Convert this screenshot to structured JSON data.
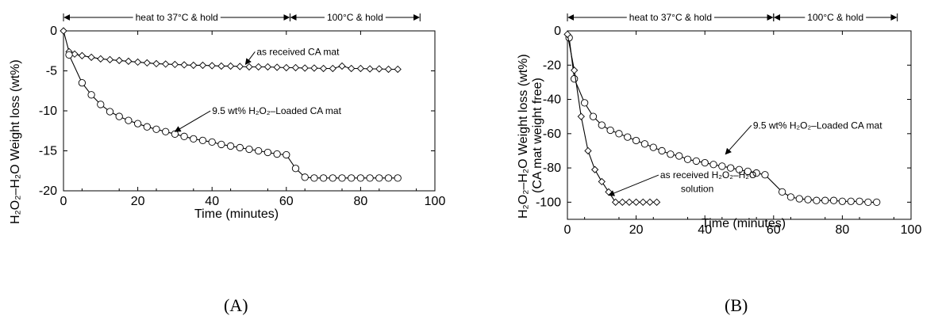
{
  "chart_data": [
    {
      "type": "scatter",
      "panel_label": "(A)",
      "xlabel": "Time (minutes)",
      "ylabel": "H₂O₂–H₂O Weight loss (wt%)",
      "xlim": [
        0,
        100
      ],
      "ylim": [
        -20,
        0
      ],
      "xticks": [
        0,
        20,
        40,
        60,
        80,
        100
      ],
      "yticks": [
        0,
        -5,
        -10,
        -15,
        -20
      ],
      "xtick_labels": [
        "0",
        "20",
        "40",
        "60",
        "80",
        "100"
      ],
      "ytick_labels": [
        "0",
        "-5",
        "-10",
        "-15",
        "-20"
      ],
      "phases": [
        {
          "label": "heat to 37°C & hold",
          "x_start": 0,
          "x_end": 61
        },
        {
          "label": "100°C & hold",
          "x_start": 61,
          "x_end": 96
        }
      ],
      "series": [
        {
          "name": "as received CA mat",
          "marker": "diamond",
          "x": [
            0,
            1.5,
            3,
            5,
            7.5,
            10,
            12.5,
            15,
            17.5,
            20,
            22.5,
            25,
            27.5,
            30,
            32.5,
            35,
            37.5,
            40,
            42.5,
            45,
            47.5,
            50,
            52.5,
            55,
            57.5,
            60,
            62.5,
            65,
            67.5,
            70,
            72.5,
            75,
            77.5,
            80,
            82.5,
            85,
            87.5,
            90
          ],
          "y": [
            0,
            -2.6,
            -2.9,
            -3.1,
            -3.3,
            -3.5,
            -3.6,
            -3.7,
            -3.8,
            -3.9,
            -4.0,
            -4.1,
            -4.15,
            -4.2,
            -4.25,
            -4.3,
            -4.3,
            -4.35,
            -4.4,
            -4.4,
            -4.45,
            -4.5,
            -4.5,
            -4.5,
            -4.55,
            -4.6,
            -4.6,
            -4.65,
            -4.65,
            -4.7,
            -4.7,
            -4.4,
            -4.7,
            -4.7,
            -4.75,
            -4.75,
            -4.8,
            -4.8
          ]
        },
        {
          "name": "9.5 wt% H₂O₂–Loaded CA mat",
          "marker": "circle",
          "x": [
            1.5,
            5,
            7.5,
            10,
            12.5,
            15,
            17.5,
            20,
            22.5,
            25,
            27.5,
            30,
            32.5,
            35,
            37.5,
            40,
            42.5,
            45,
            47.5,
            50,
            52.5,
            55,
            57.5,
            60,
            62.5,
            65,
            67.5,
            70,
            72.5,
            75,
            77.5,
            80,
            82.5,
            85,
            87.5,
            90
          ],
          "y": [
            -3.0,
            -6.5,
            -8.0,
            -9.2,
            -10.1,
            -10.7,
            -11.2,
            -11.6,
            -12.0,
            -12.3,
            -12.6,
            -12.9,
            -13.2,
            -13.5,
            -13.7,
            -13.9,
            -14.2,
            -14.4,
            -14.6,
            -14.8,
            -15.0,
            -15.2,
            -15.4,
            -15.5,
            -17.2,
            -18.3,
            -18.4,
            -18.4,
            -18.4,
            -18.4,
            -18.4,
            -18.4,
            -18.4,
            -18.4,
            -18.4,
            -18.4
          ]
        }
      ],
      "annotations": [
        {
          "text": "as received CA mat",
          "x": 52,
          "y": -3.0,
          "arrow_to": [
            49,
            -4.2
          ]
        },
        {
          "text": "9.5 wt% H₂O₂–Loaded CA mat",
          "x": 40,
          "y": -10.4,
          "arrow_to": [
            30,
            -12.6
          ]
        }
      ]
    },
    {
      "type": "scatter",
      "panel_label": "(B)",
      "xlabel": "Time (minutes)",
      "ylabel": "H₂O₂–H₂O Weight loss (wt%)",
      "ylabel2": "(CA mat weight free)",
      "xlim": [
        0,
        100
      ],
      "ylim": [
        -110,
        0
      ],
      "xticks": [
        0,
        20,
        40,
        60,
        80,
        100
      ],
      "yticks": [
        0,
        -20,
        -40,
        -60,
        -80,
        -100
      ],
      "xtick_labels": [
        "0",
        "20",
        "40",
        "60",
        "80",
        "100"
      ],
      "ytick_labels": [
        "0",
        "-20",
        "-40",
        "-60",
        "-80",
        "-100"
      ],
      "phases": [
        {
          "label": "heat to 37°C & hold",
          "x_start": 0,
          "x_end": 60
        },
        {
          "label": "100°C & hold",
          "x_start": 60,
          "x_end": 96
        }
      ],
      "series": [
        {
          "name": "9.5 wt% H₂O₂–Loaded CA mat",
          "marker": "circle",
          "x": [
            0.5,
            2,
            5,
            7.5,
            10,
            12.5,
            15,
            17.5,
            20,
            22.5,
            25,
            27.5,
            30,
            32.5,
            35,
            37.5,
            40,
            42.5,
            45,
            47.5,
            50,
            52.5,
            55,
            57.5,
            62.5,
            65,
            67.5,
            70,
            72.5,
            75,
            77.5,
            80,
            82.5,
            85,
            87.5,
            90
          ],
          "y": [
            -4,
            -28,
            -42,
            -50,
            -55,
            -58,
            -60,
            -62,
            -64,
            -66,
            -68,
            -70,
            -72,
            -73,
            -75,
            -76,
            -77,
            -78,
            -79,
            -80,
            -81,
            -82,
            -83,
            -84,
            -94,
            -97,
            -98,
            -98.5,
            -99,
            -99,
            -99,
            -99.5,
            -99.5,
            -99.5,
            -100,
            -100
          ]
        },
        {
          "name": "as received H₂O₂–H₂O solution",
          "marker": "diamond",
          "x": [
            0,
            2,
            4,
            6,
            8,
            10,
            12,
            14,
            16,
            18,
            20,
            22,
            24,
            26
          ],
          "y": [
            -2,
            -23,
            -50,
            -70,
            -81,
            -88,
            -94,
            -100,
            -100,
            -100,
            -100,
            -100,
            -100,
            -100
          ]
        }
      ],
      "annotations": [
        {
          "text": "9.5 wt% H₂O₂–Loaded CA mat",
          "x": 54,
          "y": -57,
          "arrow_to": [
            46,
            -72
          ]
        },
        {
          "text": "as received H₂O₂–H₂O",
          "x": 27,
          "y": -86,
          "arrow_to": [
            12,
            -96
          ]
        },
        {
          "text": "solution",
          "x": 33,
          "y": -94
        }
      ]
    }
  ]
}
